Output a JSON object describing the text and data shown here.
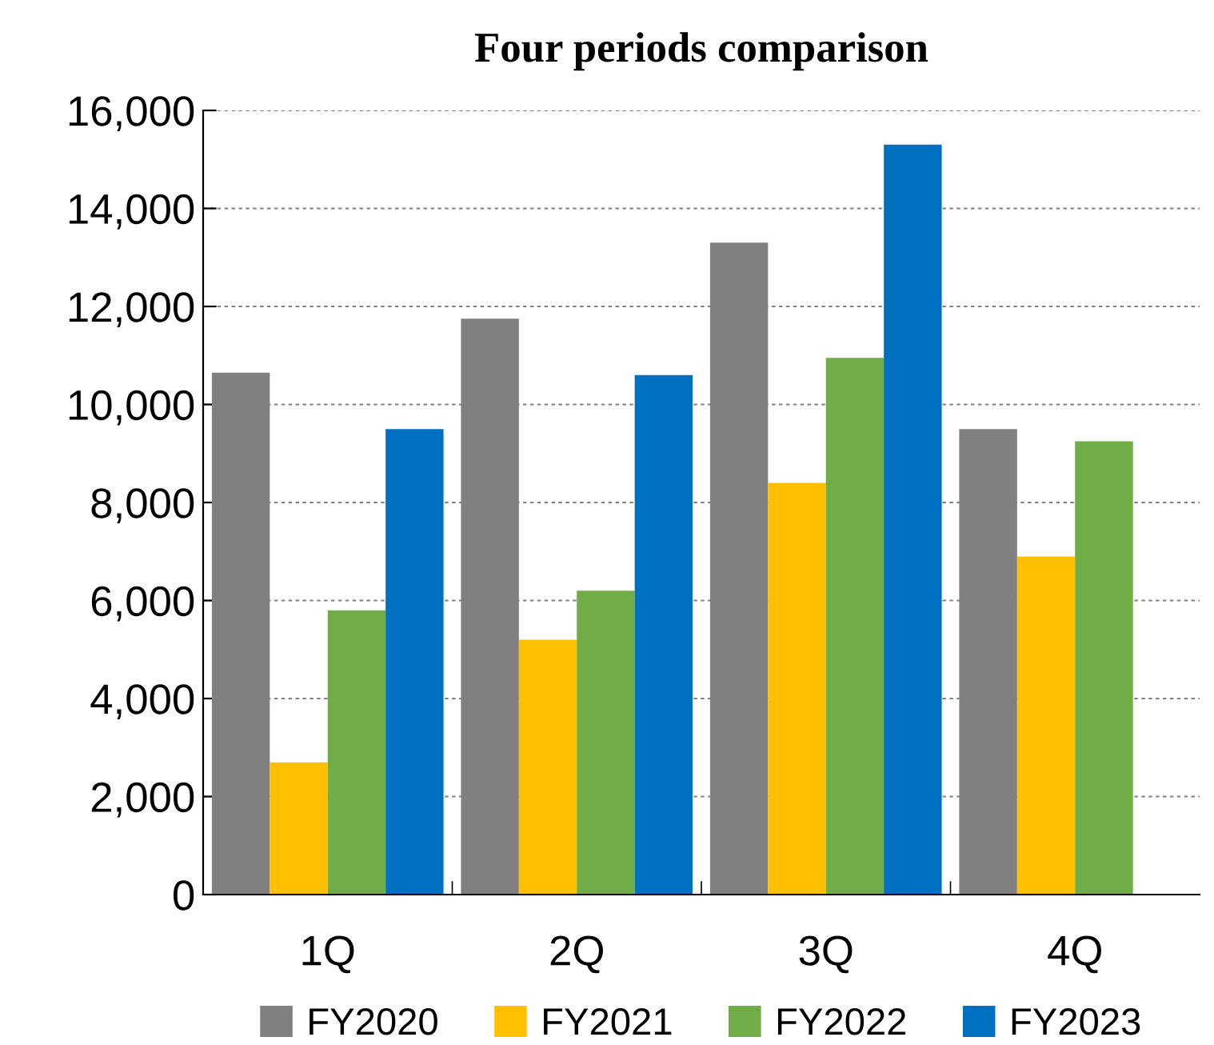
{
  "chart_data": {
    "type": "bar",
    "title": "Four periods comparison",
    "categories": [
      "1Q",
      "2Q",
      "3Q",
      "4Q"
    ],
    "series": [
      {
        "name": "FY2020",
        "color": "#808080",
        "values": [
          10650,
          11750,
          13300,
          9500
        ]
      },
      {
        "name": "FY2021",
        "color": "#ffc000",
        "values": [
          2700,
          5200,
          8400,
          6900
        ]
      },
      {
        "name": "FY2022",
        "color": "#70ad47",
        "values": [
          5800,
          6200,
          10950,
          9250
        ]
      },
      {
        "name": "FY2023",
        "color": "#0070c0",
        "values": [
          9500,
          10600,
          15300,
          null
        ]
      }
    ],
    "ylim": [
      0,
      16000
    ],
    "yticks": [
      {
        "value": 0,
        "label": "0"
      },
      {
        "value": 2000,
        "label": "2,000"
      },
      {
        "value": 4000,
        "label": "4,000"
      },
      {
        "value": 6000,
        "label": "6,000"
      },
      {
        "value": 8000,
        "label": "8,000"
      },
      {
        "value": 10000,
        "label": "10,000"
      },
      {
        "value": 12000,
        "label": "12,000"
      },
      {
        "value": 14000,
        "label": "14,000"
      },
      {
        "value": 16000,
        "label": "16,000"
      }
    ],
    "grid": "y",
    "legend": "bottom"
  }
}
